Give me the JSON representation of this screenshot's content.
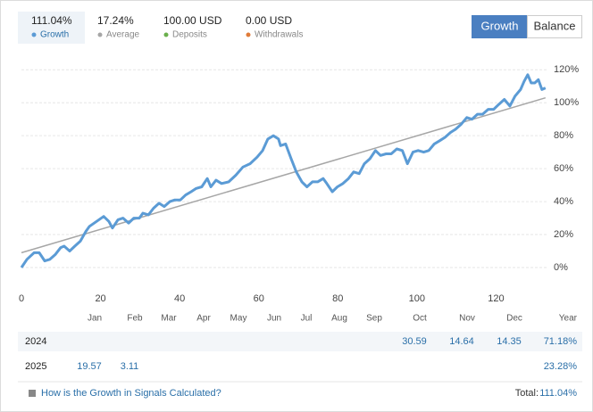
{
  "chart_data": {
    "type": "line",
    "xlim": [
      0,
      133
    ],
    "xticks": [
      0,
      20,
      40,
      60,
      80,
      100,
      120
    ],
    "ylim": [
      -10,
      125
    ],
    "yticks": [
      {
        "value": 0,
        "label": "0%"
      },
      {
        "value": 20,
        "label": "20%"
      },
      {
        "value": 40,
        "label": "40%"
      },
      {
        "value": 60,
        "label": "60%"
      },
      {
        "value": 80,
        "label": "80%"
      },
      {
        "value": 100,
        "label": "100%"
      },
      {
        "value": 120,
        "label": "120%"
      }
    ],
    "grid": true,
    "series": [
      {
        "name": "Growth",
        "total": "111.04%",
        "color": "#5b9bd5",
        "x": [
          0,
          1.4,
          3.2,
          4.5,
          5.9,
          7.2,
          8.6,
          9.9,
          10.8,
          12.2,
          13.5,
          14.9,
          16.3,
          17.2,
          19,
          20.8,
          22.1,
          23,
          24.4,
          25.7,
          27.1,
          28.4,
          29.8,
          30.7,
          32.1,
          33.4,
          34.8,
          36.1,
          37.5,
          38.8,
          40.2,
          41.5,
          42.9,
          44.2,
          45.6,
          47,
          47.9,
          49.2,
          50.6,
          52.4,
          54.2,
          56,
          57.8,
          59.6,
          61,
          62.3,
          63.7,
          65,
          65.5,
          66.8,
          68.2,
          69.5,
          70.9,
          72.2,
          73.6,
          74.9,
          76.3,
          77.2,
          78.6,
          79.9,
          81.3,
          82.7,
          84,
          85.4,
          86.7,
          88.1,
          89.5,
          90.8,
          92.2,
          93.5,
          94.9,
          96.3,
          97.6,
          99,
          100.3,
          101.7,
          103,
          104.4,
          105.8,
          107.1,
          108.5,
          109.8,
          111.2,
          112.6,
          113.9,
          115.3,
          116.6,
          118,
          119.4,
          120.7,
          122.1,
          123.5,
          124.8,
          126.2,
          127.1,
          128,
          128.9,
          129.8,
          130.7,
          131.6,
          132.5
        ],
        "values": [
          0,
          5,
          9,
          9,
          4,
          5,
          8,
          12,
          13,
          10,
          13,
          16,
          22,
          25,
          28,
          31,
          28,
          24,
          29,
          30,
          27,
          30,
          30,
          33,
          32,
          36,
          39,
          37,
          40,
          41,
          41,
          44,
          46,
          48,
          49,
          54,
          49,
          53,
          51,
          52,
          56,
          61,
          63,
          67,
          71,
          78,
          80,
          78,
          74,
          75,
          66,
          58,
          52,
          49,
          52,
          52,
          54,
          51,
          46,
          49,
          51,
          54,
          58,
          57,
          63,
          66,
          71,
          68,
          69,
          69,
          72,
          71,
          63,
          70,
          71,
          70,
          71,
          75,
          77,
          79,
          82,
          84,
          87,
          91,
          90,
          93,
          93,
          96,
          96,
          99,
          102,
          98,
          104,
          108,
          113,
          117,
          112,
          112,
          114,
          108,
          109
        ]
      },
      {
        "name": "Average",
        "total": "17.24%",
        "color": "#a6a6a6",
        "x": [
          0,
          132.5
        ],
        "values": [
          9,
          103
        ]
      }
    ]
  },
  "other_legend": [
    {
      "name": "Deposits",
      "total": "100.00 USD",
      "color": "#6ab04c"
    },
    {
      "name": "Withdrawals",
      "total": "0.00 USD",
      "color": "#e07b39"
    }
  ],
  "tabs": [
    "Growth",
    "Balance"
  ],
  "table": {
    "months": [
      "Jan",
      "Feb",
      "Mar",
      "Apr",
      "May",
      "Jun",
      "Jul",
      "Aug",
      "Sep",
      "Oct",
      "Nov",
      "Dec"
    ],
    "year_header": "Year",
    "rows": [
      {
        "year": "2024",
        "cells": [
          null,
          null,
          null,
          null,
          null,
          null,
          null,
          null,
          null,
          30.59,
          14.64,
          14.35
        ],
        "total": "71.18%"
      },
      {
        "year": "2025",
        "cells": [
          19.57,
          3.11,
          null,
          null,
          null,
          null,
          null,
          null,
          null,
          null,
          null,
          null
        ],
        "total": "23.28%"
      }
    ]
  },
  "footer": {
    "link": "How is the Growth in Signals Calculated?",
    "total_label": "Total:",
    "total": "111.04%"
  }
}
